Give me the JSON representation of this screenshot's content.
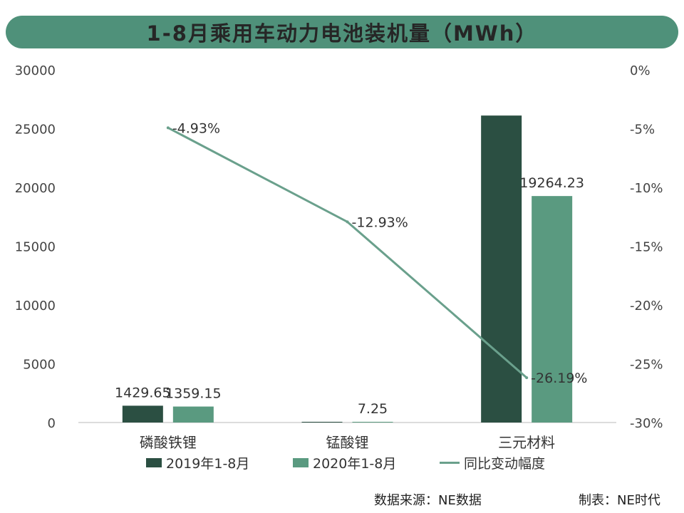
{
  "colors": {
    "series_2019": "#2b4f42",
    "series_2020": "#5a9a80",
    "line": "#6aa08c",
    "title_bg": "#4f917a",
    "axis": "#d0d0d0"
  },
  "chart_data": {
    "type": "bar",
    "title": "1-8月乘用车动力电池装机量（MWh）",
    "categories": [
      "磷酸铁锂",
      "锰酸锂",
      "三元材料"
    ],
    "series": [
      {
        "name": "2019年1-8月",
        "values": [
          1429.65,
          8.33,
          26111.24
        ],
        "labels": [
          "1429.65",
          "",
          ""
        ]
      },
      {
        "name": "2020年1-8月",
        "values": [
          1359.15,
          7.25,
          19264.23
        ],
        "labels": [
          "1359.15",
          "7.25",
          "19264.23"
        ]
      }
    ],
    "line_series": {
      "name": "同比变动幅度",
      "values": [
        -4.93,
        -12.93,
        -26.19
      ],
      "labels": [
        "-4.93%",
        "-12.93%",
        "-26.19%"
      ],
      "axis": "right"
    },
    "ylim": [
      0,
      30000
    ],
    "y_ticks": [
      "0",
      "5000",
      "10000",
      "15000",
      "20000",
      "25000",
      "30000"
    ],
    "y2lim": [
      -30,
      0
    ],
    "y2_ticks": [
      "-30%",
      "-25%",
      "-20%",
      "-15%",
      "-10%",
      "-5%",
      "0%"
    ],
    "legend_position": "bottom",
    "grid": false
  },
  "footer": {
    "source": "数据来源：NE数据",
    "maker": "制表：NE时代"
  }
}
